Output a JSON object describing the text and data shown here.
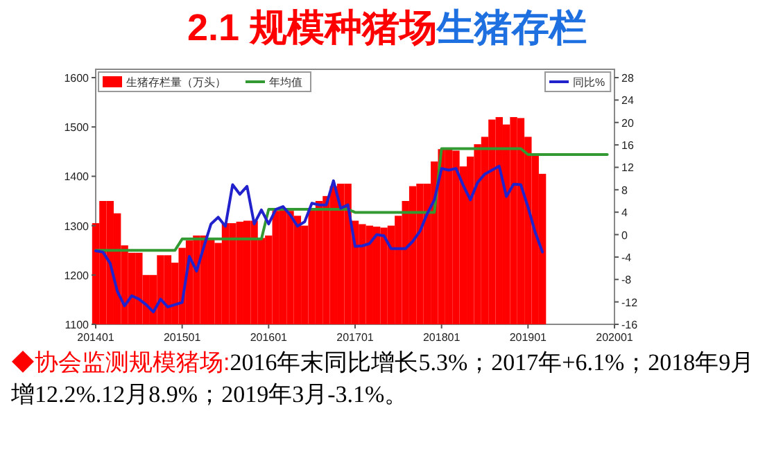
{
  "chart_data": {
    "type": "bar",
    "title": "2.1  规模种猪场",
    "subtitle": "生猪存栏",
    "x": [
      "2014-01",
      "2014-02",
      "2014-03",
      "2014-04",
      "2014-05",
      "2014-06",
      "2014-07",
      "2014-08",
      "2014-09",
      "2014-10",
      "2014-11",
      "2014-12",
      "2015-01",
      "2015-02",
      "2015-03",
      "2015-04",
      "2015-05",
      "2015-06",
      "2015-07",
      "2015-08",
      "2015-09",
      "2015-10",
      "2015-11",
      "2015-12",
      "2016-01",
      "2016-02",
      "2016-03",
      "2016-04",
      "2016-05",
      "2016-06",
      "2016-07",
      "2016-08",
      "2016-09",
      "2016-10",
      "2016-11",
      "2016-12",
      "2017-01",
      "2017-02",
      "2017-03",
      "2017-04",
      "2017-05",
      "2017-06",
      "2017-07",
      "2017-08",
      "2017-09",
      "2017-10",
      "2017-11",
      "2017-12",
      "2018-01",
      "2018-02",
      "2018-03",
      "2018-04",
      "2018-05",
      "2018-06",
      "2018-07",
      "2018-08",
      "2018-09",
      "2018-10",
      "2018-11",
      "2018-12",
      "2019-01",
      "2019-02",
      "2019-03"
    ],
    "xlim": [
      "2014-01",
      "2020-01"
    ],
    "xticks": [
      {
        "value": "2014-01",
        "label": "201401"
      },
      {
        "value": "2015-01",
        "label": "201501"
      },
      {
        "value": "2016-01",
        "label": "201601"
      },
      {
        "value": "2017-01",
        "label": "201701"
      },
      {
        "value": "2018-01",
        "label": "201801"
      },
      {
        "value": "2019-01",
        "label": "201901"
      },
      {
        "value": "2020-01",
        "label": "202001"
      }
    ],
    "ylim": [
      1100,
      1600
    ],
    "yticks": [
      1100,
      1200,
      1300,
      1400,
      1500,
      1600
    ],
    "y2lim": [
      -16,
      28
    ],
    "y2ticks": [
      -16,
      -12,
      -8,
      -4,
      0,
      4,
      8,
      12,
      16,
      20,
      24,
      28
    ],
    "series": [
      {
        "name": "生猪存栏量（万头）",
        "color": "#ff0000",
        "values": [
          1305,
          1350,
          1350,
          1325,
          1260,
          1245,
          1245,
          1200,
          1200,
          1240,
          1240,
          1225,
          1255,
          1270,
          1280,
          1280,
          1275,
          1265,
          1305,
          1305,
          1308,
          1310,
          1310,
          1275,
          1280,
          1330,
          1335,
          1330,
          1320,
          1300,
          1335,
          1350,
          1360,
          1380,
          1385,
          1385,
          1310,
          1303,
          1300,
          1298,
          1296,
          1300,
          1320,
          1350,
          1380,
          1385,
          1385,
          1430,
          1455,
          1455,
          1452,
          1420,
          1440,
          1465,
          1480,
          1515,
          1520,
          1505,
          1520,
          1518,
          1480,
          1445,
          1405
        ]
      },
      {
        "name": "年均值",
        "type": "line",
        "color": "#339933",
        "x": [
          "2014-01",
          "2014-12",
          "2015-01",
          "2015-12",
          "2016-01",
          "2016-12",
          "2017-01",
          "2017-12",
          "2018-01",
          "2018-12",
          "2019-01",
          "2019-12"
        ],
        "values": [
          1250,
          1250,
          1273,
          1273,
          1333,
          1333,
          1327,
          1327,
          1456,
          1456,
          1444,
          1444
        ]
      },
      {
        "name": "同比%",
        "type": "line",
        "axis": "y2",
        "color": "#2222cc",
        "values": [
          -2.9,
          -3.1,
          -5.1,
          -10.1,
          -12.7,
          -10.9,
          -11.5,
          -12.5,
          -13.8,
          -11.5,
          -12.9,
          -12.5,
          -12.1,
          -3.9,
          -6.5,
          -2.2,
          1.9,
          3.1,
          1.5,
          8.9,
          7.2,
          8.6,
          1.9,
          4.4,
          1.9,
          4.5,
          5.0,
          3.5,
          1.5,
          2.3,
          5.6,
          5.3,
          5.3,
          9.6,
          4.7,
          5.3,
          -2.1,
          -2.0,
          -1.6,
          0,
          -0.2,
          -2.5,
          -2.5,
          -2.5,
          -1.2,
          0.6,
          3.7,
          6.2,
          11.8,
          11.5,
          11.8,
          8.8,
          6.2,
          9.3,
          10.8,
          11.5,
          12.2,
          6.8,
          9.0,
          8.9,
          4.9,
          0.4,
          -3.1
        ]
      }
    ],
    "legend": "top",
    "annotations": [
      "◆协会监测规模猪场:",
      "2016年末同比增长5.3%；2017年+6.1%；2018年9月增12.2%.12月8.9%；2019年3月-3.1%。"
    ]
  }
}
